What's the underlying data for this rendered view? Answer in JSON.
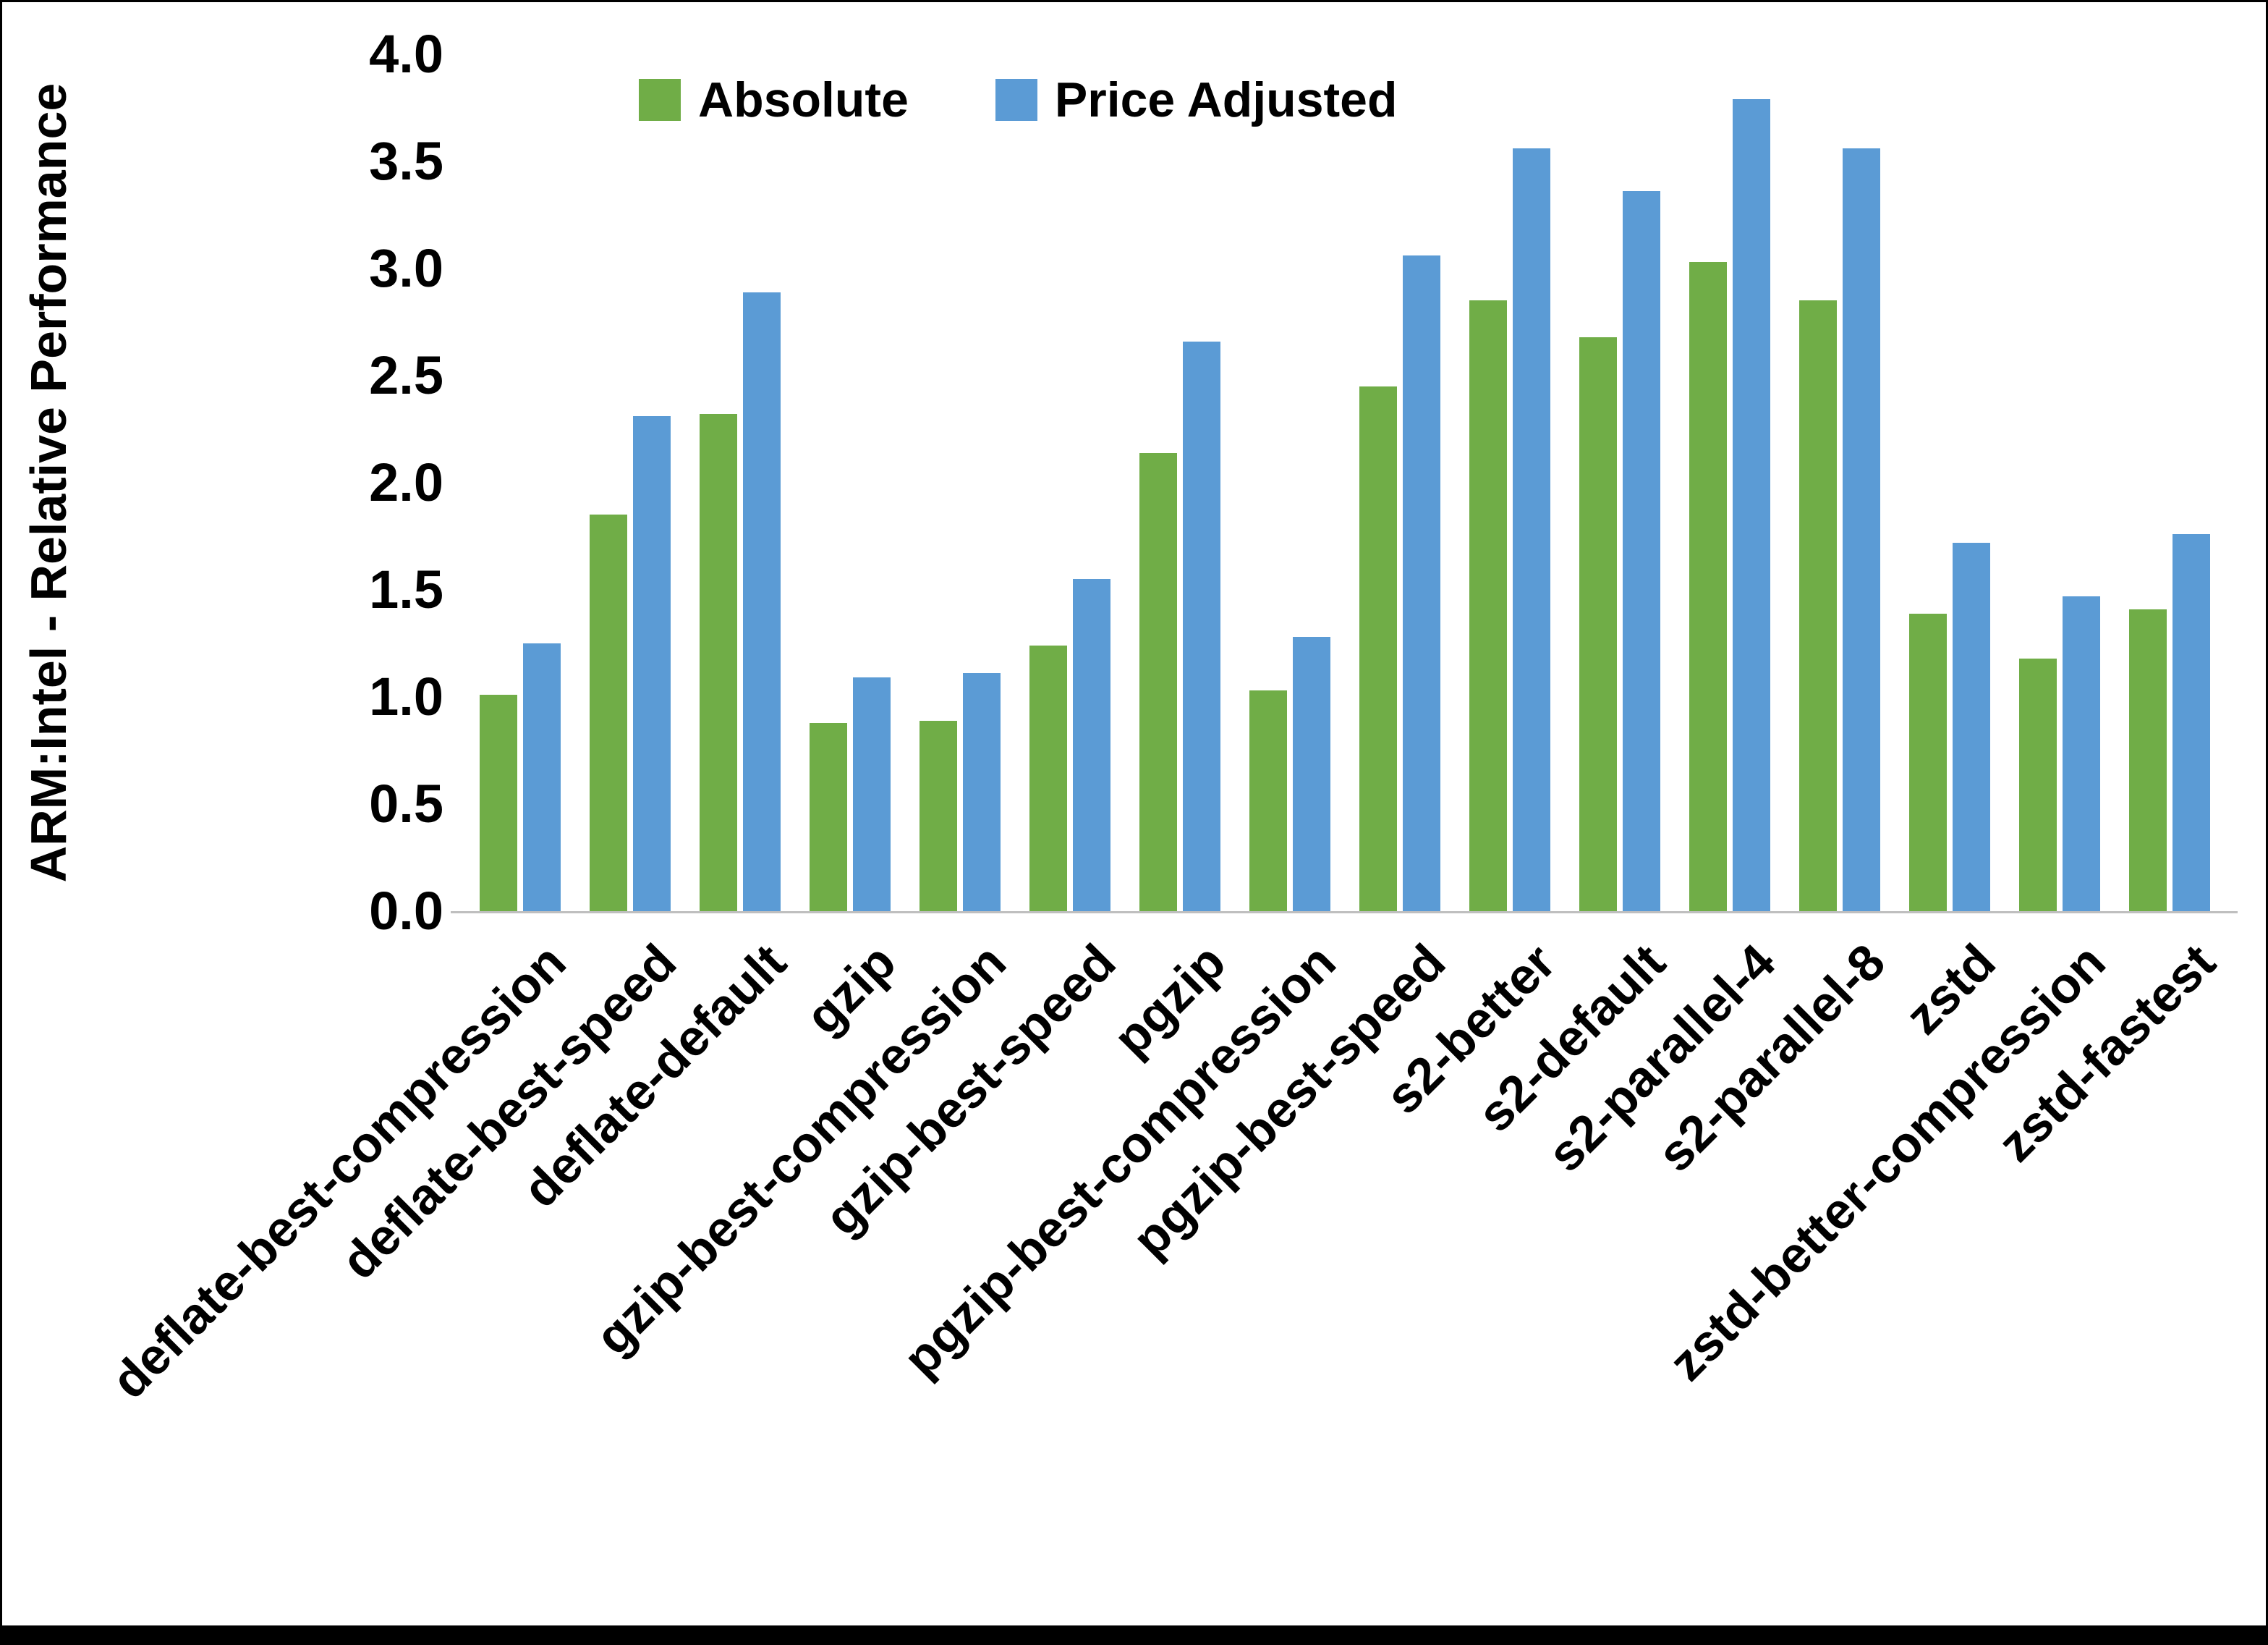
{
  "chart_data": {
    "type": "bar",
    "title": "",
    "xlabel": "",
    "ylabel": "ARM:Intel - Relative Performance",
    "ylim": [
      0,
      4
    ],
    "ytick_step": 0.5,
    "ytick_format_decimals": 1,
    "grid": false,
    "legend_position": "top-center",
    "categories": [
      "deflate-best-compression",
      "deflate-best-speed",
      "deflate-default",
      "gzip",
      "gzip-best-compression",
      "gzip-best-speed",
      "pgzip",
      "pgzip-best-compression",
      "pgzip-best-speed",
      "s2-better",
      "s2-default",
      "s2-parallel-4",
      "s2-parallel-8",
      "zstd",
      "zstd-better-compression",
      "zstd-fastest"
    ],
    "series": [
      {
        "name": "Absolute",
        "color": "#70AD47",
        "values": [
          1.01,
          1.85,
          2.32,
          0.88,
          0.89,
          1.24,
          2.14,
          1.03,
          2.45,
          2.85,
          2.68,
          3.03,
          2.85,
          1.39,
          1.18,
          1.41
        ]
      },
      {
        "name": "Price Adjusted",
        "color": "#5B9BD5",
        "values": [
          1.25,
          2.31,
          2.89,
          1.09,
          1.11,
          1.55,
          2.66,
          1.28,
          3.06,
          3.56,
          3.36,
          3.79,
          3.56,
          1.72,
          1.47,
          1.76
        ]
      }
    ]
  },
  "colors": {
    "background": "#FFFFFF",
    "axis_line": "#BFBFBF",
    "text": "#000000",
    "frame": "#000000"
  }
}
